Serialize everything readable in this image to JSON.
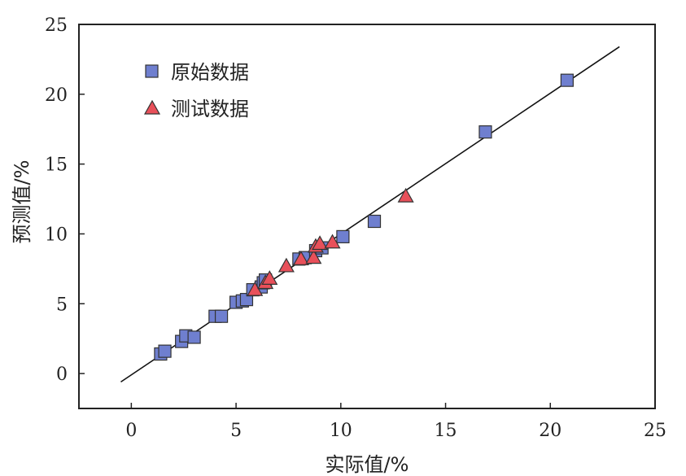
{
  "chart_data": {
    "type": "scatter",
    "title": "",
    "xlabel": "实际值/%",
    "ylabel": "预测值/%",
    "xlim": [
      -2.5,
      25
    ],
    "ylim": [
      -2.5,
      25
    ],
    "x_ticks": [
      "0",
      "5",
      "10",
      "15",
      "20",
      "25"
    ],
    "y_ticks": [
      "0",
      "5",
      "10",
      "15",
      "20",
      "25"
    ],
    "grid": false,
    "legend_position": "top-left",
    "series": [
      {
        "name": "原始数据",
        "marker": "square",
        "color": "#6f7fcf",
        "points": [
          [
            1.4,
            1.4
          ],
          [
            1.6,
            1.6
          ],
          [
            2.4,
            2.3
          ],
          [
            2.6,
            2.7
          ],
          [
            3.0,
            2.6
          ],
          [
            4.0,
            4.1
          ],
          [
            4.3,
            4.1
          ],
          [
            5.0,
            5.1
          ],
          [
            5.3,
            5.2
          ],
          [
            5.5,
            5.3
          ],
          [
            5.8,
            6.0
          ],
          [
            6.2,
            6.2
          ],
          [
            6.3,
            6.5
          ],
          [
            6.4,
            6.7
          ],
          [
            8.0,
            8.2
          ],
          [
            8.3,
            8.3
          ],
          [
            8.8,
            8.8
          ],
          [
            9.1,
            9.0
          ],
          [
            10.1,
            9.8
          ],
          [
            11.6,
            10.9
          ],
          [
            16.9,
            17.3
          ],
          [
            20.8,
            21.0
          ]
        ]
      },
      {
        "name": "测试数据",
        "marker": "triangle",
        "color": "#e8505a",
        "points": [
          [
            5.9,
            6.0
          ],
          [
            6.4,
            6.5
          ],
          [
            6.6,
            6.8
          ],
          [
            7.4,
            7.7
          ],
          [
            8.1,
            8.2
          ],
          [
            8.7,
            8.3
          ],
          [
            8.8,
            9.1
          ],
          [
            9.0,
            9.3
          ],
          [
            9.6,
            9.4
          ],
          [
            13.1,
            12.7
          ]
        ]
      },
      {
        "name": "",
        "type": "line",
        "color": "#111111",
        "points": [
          [
            -0.5,
            -0.6
          ],
          [
            23.3,
            23.4
          ]
        ]
      }
    ]
  }
}
